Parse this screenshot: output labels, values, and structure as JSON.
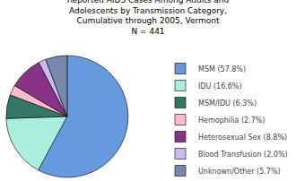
{
  "chart_data": {
    "type": "pie",
    "title": "Reported AIDS Cases Among Adults and\nAdolescents by Transmission Category,\nCumulative through 2005, Vermont\nN = 441",
    "categories": [
      "MSM (57.8%)",
      "IDU (16.6%)",
      "MSM/IDU (6.3%)",
      "Hemophilia (2.7%)",
      "Heterosexual Sex (8.8%)",
      "Blood Transfusion (2.0%)",
      "Unknown/Other (5.7%)"
    ],
    "values": [
      57.8,
      16.6,
      6.3,
      2.7,
      8.8,
      2.0,
      5.7
    ],
    "colors": [
      "#6699dd",
      "#aaeedd",
      "#337766",
      "#ffbbcc",
      "#883388",
      "#ccbbee",
      "#7788aa"
    ],
    "legend": "upper right",
    "data_labels": false
  }
}
